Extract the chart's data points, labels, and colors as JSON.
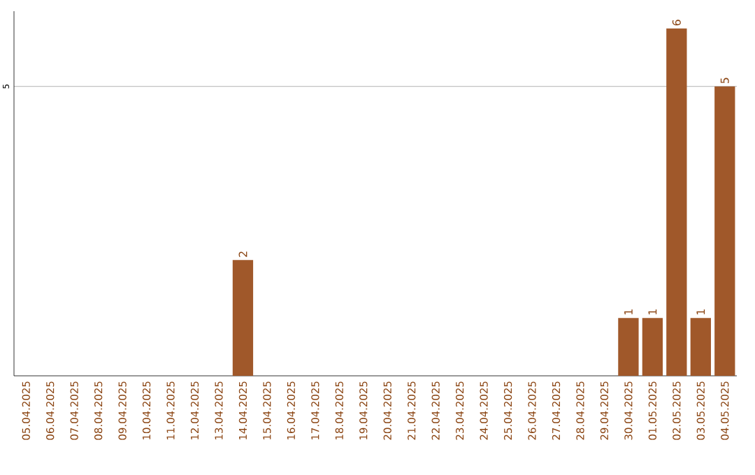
{
  "chart_data": {
    "type": "bar",
    "categories": [
      "05.04.2025",
      "06.04.2025",
      "07.04.2025",
      "08.04.2025",
      "09.04.2025",
      "10.04.2025",
      "11.04.2025",
      "12.04.2025",
      "13.04.2025",
      "14.04.2025",
      "15.04.2025",
      "16.04.2025",
      "17.04.2025",
      "18.04.2025",
      "19.04.2025",
      "20.04.2025",
      "21.04.2025",
      "22.04.2025",
      "23.04.2025",
      "24.04.2025",
      "25.04.2025",
      "26.04.2025",
      "27.04.2025",
      "28.04.2025",
      "29.04.2025",
      "30.04.2025",
      "01.05.2025",
      "02.05.2025",
      "03.05.2025",
      "04.05.2025"
    ],
    "values": [
      0,
      0,
      0,
      0,
      0,
      0,
      0,
      0,
      0,
      2,
      0,
      0,
      0,
      0,
      0,
      0,
      0,
      0,
      0,
      0,
      0,
      0,
      0,
      0,
      0,
      1,
      1,
      6,
      1,
      5
    ],
    "value_labels": [
      null,
      null,
      null,
      null,
      null,
      null,
      null,
      null,
      null,
      "2",
      null,
      null,
      null,
      null,
      null,
      null,
      null,
      null,
      null,
      null,
      null,
      null,
      null,
      null,
      null,
      "1",
      "1",
      "6",
      "1",
      "5"
    ],
    "color": "#a0582a",
    "ylim": [
      0,
      6.3
    ],
    "yticks": [
      5
    ],
    "grid": "y"
  }
}
